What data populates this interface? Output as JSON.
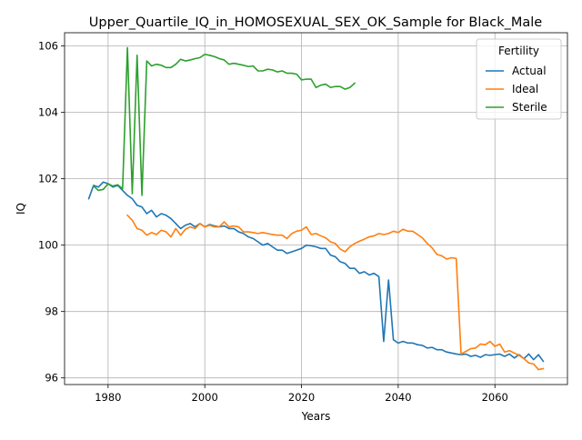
{
  "chart_data": {
    "type": "line",
    "title": "Upper_Quartile_IQ_in_HOMOSEXUAL_SEX_OK_Sample for Black_Male",
    "xlabel": "Years",
    "ylabel": "IQ",
    "xlim": [
      1971,
      2075
    ],
    "ylim": [
      95.8,
      106.4
    ],
    "x_ticks": [
      1980,
      2000,
      2020,
      2040,
      2060
    ],
    "y_ticks": [
      96,
      98,
      100,
      102,
      104,
      106
    ],
    "grid": true,
    "legend": {
      "title": "Fertility",
      "placement": "top-right",
      "entries": [
        "Actual",
        "Ideal",
        "Sterile"
      ]
    },
    "series": [
      {
        "name": "Actual",
        "color": "#1f77b4",
        "points": [
          [
            1976,
            101.4
          ],
          [
            1977,
            101.8
          ],
          [
            1978,
            101.75
          ],
          [
            1979,
            101.9
          ],
          [
            1980,
            101.85
          ],
          [
            1981,
            101.75
          ],
          [
            1982,
            101.8
          ],
          [
            1983,
            101.65
          ],
          [
            1984,
            101.5
          ],
          [
            1985,
            101.4
          ],
          [
            1986,
            101.2
          ],
          [
            1987,
            101.15
          ],
          [
            1988,
            100.95
          ],
          [
            1989,
            101.05
          ],
          [
            1990,
            100.85
          ],
          [
            1991,
            100.95
          ],
          [
            1992,
            100.9
          ],
          [
            1993,
            100.8
          ],
          [
            1994,
            100.65
          ],
          [
            1995,
            100.5
          ],
          [
            1996,
            100.6
          ],
          [
            1997,
            100.65
          ],
          [
            1998,
            100.55
          ],
          [
            1999,
            100.65
          ],
          [
            2000,
            100.55
          ],
          [
            2001,
            100.62
          ],
          [
            2002,
            100.58
          ],
          [
            2003,
            100.55
          ],
          [
            2004,
            100.58
          ],
          [
            2005,
            100.5
          ],
          [
            2006,
            100.5
          ],
          [
            2007,
            100.4
          ],
          [
            2008,
            100.35
          ],
          [
            2009,
            100.25
          ],
          [
            2010,
            100.2
          ],
          [
            2011,
            100.1
          ],
          [
            2012,
            100.0
          ],
          [
            2013,
            100.05
          ],
          [
            2014,
            99.95
          ],
          [
            2015,
            99.85
          ],
          [
            2016,
            99.85
          ],
          [
            2017,
            99.75
          ],
          [
            2018,
            99.8
          ],
          [
            2019,
            99.85
          ],
          [
            2020,
            99.9
          ],
          [
            2021,
            100.0
          ],
          [
            2022,
            99.98
          ],
          [
            2023,
            99.95
          ],
          [
            2024,
            99.9
          ],
          [
            2025,
            99.9
          ],
          [
            2026,
            99.7
          ],
          [
            2027,
            99.65
          ],
          [
            2028,
            99.5
          ],
          [
            2029,
            99.45
          ],
          [
            2030,
            99.3
          ],
          [
            2031,
            99.3
          ],
          [
            2032,
            99.15
          ],
          [
            2033,
            99.2
          ],
          [
            2034,
            99.1
          ],
          [
            2035,
            99.15
          ],
          [
            2036,
            99.05
          ],
          [
            2037,
            97.1
          ],
          [
            2038,
            98.95
          ],
          [
            2039,
            97.15
          ],
          [
            2040,
            97.05
          ],
          [
            2041,
            97.1
          ],
          [
            2042,
            97.05
          ],
          [
            2043,
            97.05
          ],
          [
            2044,
            97.0
          ],
          [
            2045,
            96.98
          ],
          [
            2046,
            96.9
          ],
          [
            2047,
            96.92
          ],
          [
            2048,
            96.85
          ],
          [
            2049,
            96.85
          ],
          [
            2050,
            96.78
          ],
          [
            2051,
            96.75
          ],
          [
            2052,
            96.72
          ],
          [
            2053,
            96.7
          ],
          [
            2054,
            96.72
          ],
          [
            2055,
            96.65
          ],
          [
            2056,
            96.68
          ],
          [
            2057,
            96.62
          ],
          [
            2058,
            96.7
          ],
          [
            2059,
            96.68
          ],
          [
            2060,
            96.7
          ],
          [
            2061,
            96.72
          ],
          [
            2062,
            96.65
          ],
          [
            2063,
            96.72
          ],
          [
            2064,
            96.6
          ],
          [
            2065,
            96.7
          ],
          [
            2066,
            96.58
          ],
          [
            2067,
            96.72
          ],
          [
            2068,
            96.55
          ],
          [
            2069,
            96.7
          ],
          [
            2070,
            96.5
          ]
        ]
      },
      {
        "name": "Ideal",
        "color": "#ff7f0e",
        "points": [
          [
            1984,
            100.9
          ],
          [
            1985,
            100.75
          ],
          [
            1986,
            100.5
          ],
          [
            1987,
            100.45
          ],
          [
            1988,
            100.3
          ],
          [
            1989,
            100.38
          ],
          [
            1990,
            100.32
          ],
          [
            1991,
            100.45
          ],
          [
            1992,
            100.4
          ],
          [
            1993,
            100.25
          ],
          [
            1994,
            100.5
          ],
          [
            1995,
            100.3
          ],
          [
            1996,
            100.48
          ],
          [
            1997,
            100.55
          ],
          [
            1998,
            100.5
          ],
          [
            1999,
            100.65
          ],
          [
            2000,
            100.55
          ],
          [
            2001,
            100.6
          ],
          [
            2002,
            100.55
          ],
          [
            2003,
            100.55
          ],
          [
            2004,
            100.7
          ],
          [
            2005,
            100.55
          ],
          [
            2006,
            100.58
          ],
          [
            2007,
            100.55
          ],
          [
            2008,
            100.4
          ],
          [
            2009,
            100.4
          ],
          [
            2010,
            100.38
          ],
          [
            2011,
            100.35
          ],
          [
            2012,
            100.38
          ],
          [
            2013,
            100.35
          ],
          [
            2014,
            100.32
          ],
          [
            2015,
            100.3
          ],
          [
            2016,
            100.3
          ],
          [
            2017,
            100.2
          ],
          [
            2018,
            100.35
          ],
          [
            2019,
            100.42
          ],
          [
            2020,
            100.45
          ],
          [
            2021,
            100.55
          ],
          [
            2022,
            100.32
          ],
          [
            2023,
            100.35
          ],
          [
            2024,
            100.28
          ],
          [
            2025,
            100.22
          ],
          [
            2026,
            100.1
          ],
          [
            2027,
            100.05
          ],
          [
            2028,
            99.88
          ],
          [
            2029,
            99.8
          ],
          [
            2030,
            99.95
          ],
          [
            2031,
            100.05
          ],
          [
            2032,
            100.12
          ],
          [
            2033,
            100.18
          ],
          [
            2034,
            100.25
          ],
          [
            2035,
            100.28
          ],
          [
            2036,
            100.35
          ],
          [
            2037,
            100.32
          ],
          [
            2038,
            100.35
          ],
          [
            2039,
            100.42
          ],
          [
            2040,
            100.38
          ],
          [
            2041,
            100.48
          ],
          [
            2042,
            100.42
          ],
          [
            2043,
            100.42
          ],
          [
            2044,
            100.32
          ],
          [
            2045,
            100.22
          ],
          [
            2046,
            100.05
          ],
          [
            2047,
            99.92
          ],
          [
            2048,
            99.72
          ],
          [
            2049,
            99.68
          ],
          [
            2050,
            99.58
          ],
          [
            2051,
            99.62
          ],
          [
            2052,
            99.6
          ],
          [
            2053,
            96.72
          ],
          [
            2054,
            96.8
          ],
          [
            2055,
            96.88
          ],
          [
            2056,
            96.9
          ],
          [
            2057,
            97.02
          ],
          [
            2058,
            97.0
          ],
          [
            2059,
            97.1
          ],
          [
            2060,
            96.95
          ],
          [
            2061,
            97.02
          ],
          [
            2062,
            96.78
          ],
          [
            2063,
            96.82
          ],
          [
            2064,
            96.75
          ],
          [
            2065,
            96.68
          ],
          [
            2066,
            96.58
          ],
          [
            2067,
            96.45
          ],
          [
            2068,
            96.42
          ],
          [
            2069,
            96.25
          ],
          [
            2070,
            96.28
          ]
        ]
      },
      {
        "name": "Sterile",
        "color": "#2ca02c",
        "points": [
          [
            1977,
            101.78
          ],
          [
            1978,
            101.65
          ],
          [
            1979,
            101.68
          ],
          [
            1980,
            101.85
          ],
          [
            1981,
            101.78
          ],
          [
            1982,
            101.82
          ],
          [
            1983,
            101.7
          ],
          [
            1984,
            105.95
          ],
          [
            1985,
            101.55
          ],
          [
            1986,
            105.72
          ],
          [
            1987,
            101.5
          ],
          [
            1988,
            105.55
          ],
          [
            1989,
            105.4
          ],
          [
            1990,
            105.45
          ],
          [
            1991,
            105.42
          ],
          [
            1992,
            105.35
          ],
          [
            1993,
            105.35
          ],
          [
            1994,
            105.45
          ],
          [
            1995,
            105.6
          ],
          [
            1996,
            105.55
          ],
          [
            1997,
            105.58
          ],
          [
            1998,
            105.62
          ],
          [
            1999,
            105.65
          ],
          [
            2000,
            105.75
          ],
          [
            2001,
            105.72
          ],
          [
            2002,
            105.68
          ],
          [
            2003,
            105.62
          ],
          [
            2004,
            105.58
          ],
          [
            2005,
            105.45
          ],
          [
            2006,
            105.48
          ],
          [
            2007,
            105.45
          ],
          [
            2008,
            105.42
          ],
          [
            2009,
            105.38
          ],
          [
            2010,
            105.4
          ],
          [
            2011,
            105.25
          ],
          [
            2012,
            105.25
          ],
          [
            2013,
            105.3
          ],
          [
            2014,
            105.28
          ],
          [
            2015,
            105.22
          ],
          [
            2016,
            105.25
          ],
          [
            2017,
            105.18
          ],
          [
            2018,
            105.18
          ],
          [
            2019,
            105.15
          ],
          [
            2020,
            104.98
          ],
          [
            2021,
            105.0
          ],
          [
            2022,
            105.0
          ],
          [
            2023,
            104.75
          ],
          [
            2024,
            104.82
          ],
          [
            2025,
            104.85
          ],
          [
            2026,
            104.75
          ],
          [
            2027,
            104.78
          ],
          [
            2028,
            104.78
          ],
          [
            2029,
            104.7
          ],
          [
            2030,
            104.75
          ],
          [
            2031,
            104.88
          ]
        ]
      }
    ]
  }
}
